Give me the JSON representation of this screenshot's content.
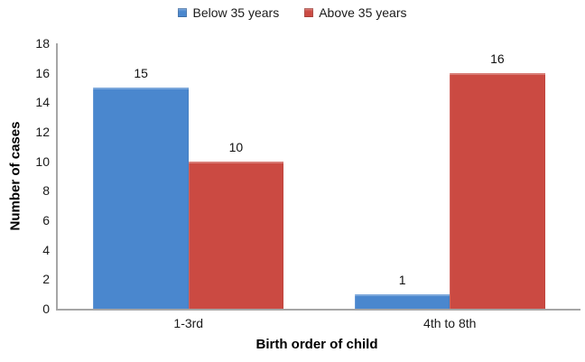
{
  "chart_data": {
    "type": "bar",
    "title": "",
    "categories": [
      "1-3rd",
      "4th to 8th"
    ],
    "series": [
      {
        "name": "Below 35 years",
        "color": "#4A87CE",
        "values": [
          15,
          1
        ]
      },
      {
        "name": "Above 35 years",
        "color": "#CB4A42",
        "values": [
          10,
          16
        ]
      }
    ],
    "xlabel": "Birth order of child",
    "ylabel": "Number of cases",
    "ylim": [
      0,
      18
    ],
    "ytick_step": 2,
    "grid": false,
    "legend_position": "top",
    "data_labels": true,
    "axis_color": "#A6A6A6",
    "text_color": "#1a1a1a"
  }
}
